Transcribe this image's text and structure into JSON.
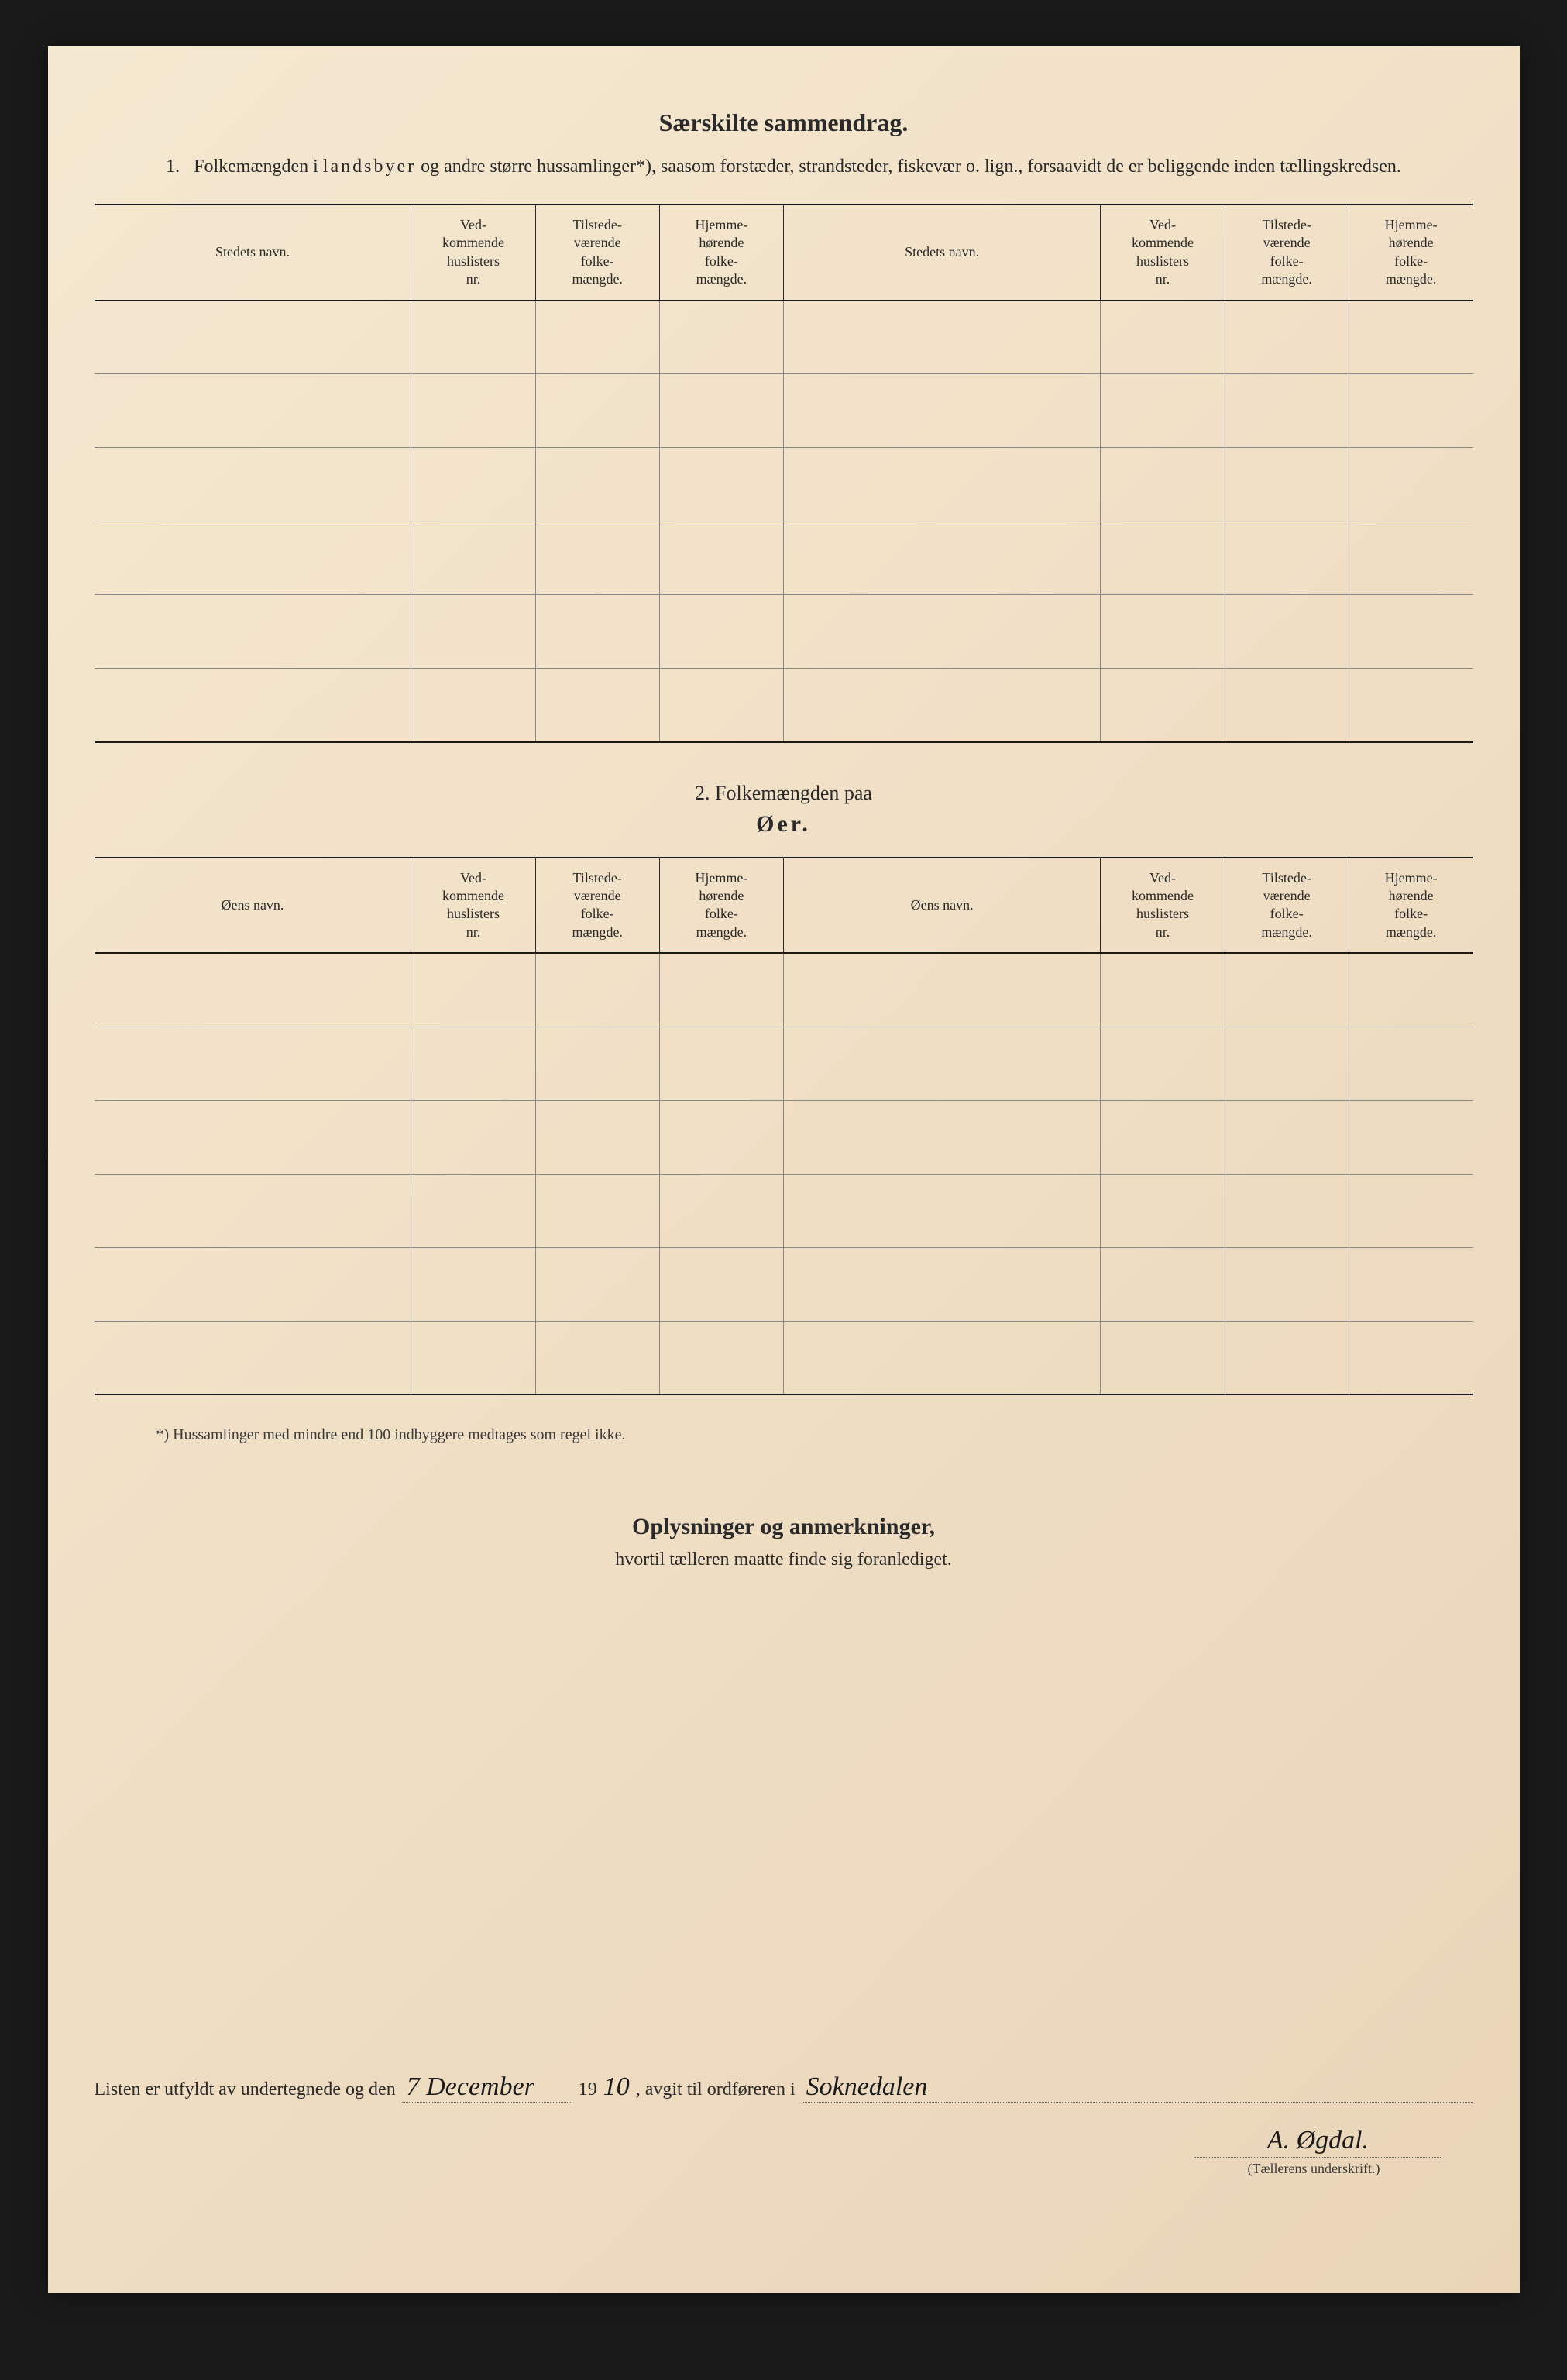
{
  "title": "Særskilte sammendrag.",
  "section1": {
    "number": "1.",
    "text_pre": "Folkemængden i ",
    "text_spaced": "landsbyer",
    "text_post": " og andre større hussamlinger*), saasom forstæder, strandsteder, fiskevær o. lign., forsaavidt de er beliggende inden tællingskredsen."
  },
  "headers": {
    "name1": "Stedets navn.",
    "col2": "Ved-\nkommende\nhuslisters\nnr.",
    "col3": "Tilstede-\nværende\nfolke-\nmængde.",
    "col4": "Hjemme-\nhørende\nfolke-\nmængde.",
    "name2": "Stedets navn."
  },
  "section2": {
    "number_text": "2.    Folkemængden paa",
    "title": "Øer."
  },
  "headers2": {
    "name1": "Øens navn.",
    "col2": "Ved-\nkommende\nhuslisters\nnr.",
    "col3": "Tilstede-\nværende\nfolke-\nmængde.",
    "col4": "Hjemme-\nhørende\nfolke-\nmængde.",
    "name2": "Øens navn."
  },
  "footnote": "*)  Hussamlinger med mindre end 100 indbyggere medtages som regel ikke.",
  "notes": {
    "title": "Oplysninger og anmerkninger,",
    "sub": "hvortil tælleren maatte finde sig foranlediget."
  },
  "signature": {
    "text1": "Listen er utfyldt av undertegnede og den",
    "date_hand": "7 December",
    "year_prefix": "19",
    "year_hand": "10",
    "text2": ", avgit til ordføreren i",
    "place_hand": "Soknedalen",
    "name_hand": "A. Øgdal.",
    "label": "(Tællerens underskrift.)"
  },
  "table1_rows": 6,
  "table2_rows": 6
}
